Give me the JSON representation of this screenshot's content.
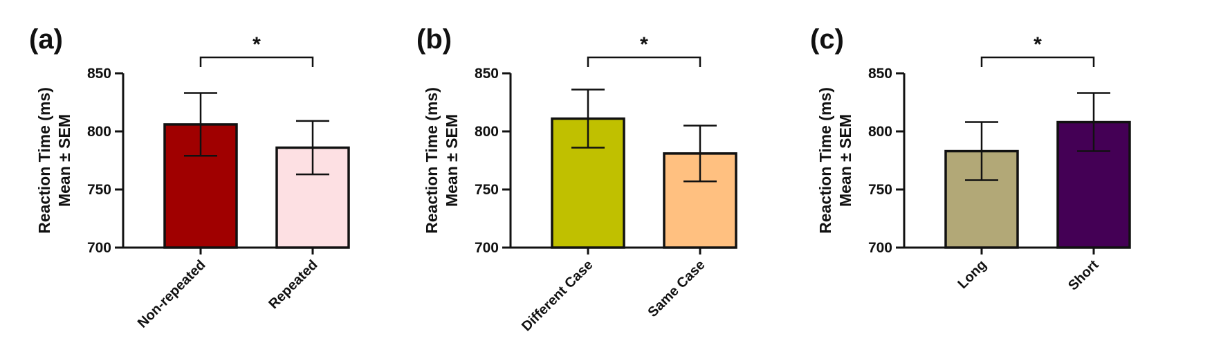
{
  "chart_data": [
    {
      "type": "bar",
      "panel_label": "(a)",
      "categories": [
        "Non-repeated",
        "Repeated"
      ],
      "values": [
        806,
        786
      ],
      "errors": [
        27,
        23
      ],
      "colors": [
        "#a00000",
        "#fde0e3"
      ],
      "ylabel": [
        "Reaction Time (ms)",
        "Mean ± SEM"
      ],
      "ylim": [
        700,
        850
      ],
      "yticks": [
        700,
        750,
        800,
        850
      ],
      "significance": "*",
      "grid": false
    },
    {
      "type": "bar",
      "panel_label": "(b)",
      "categories": [
        "Different Case",
        "Same Case"
      ],
      "values": [
        811,
        781
      ],
      "errors": [
        25,
        24
      ],
      "colors": [
        "#c0c000",
        "#ffc080"
      ],
      "ylabel": [
        "Reaction Time (ms)",
        "Mean ± SEM"
      ],
      "ylim": [
        700,
        850
      ],
      "yticks": [
        700,
        750,
        800,
        850
      ],
      "significance": "*",
      "grid": false
    },
    {
      "type": "bar",
      "panel_label": "(c)",
      "categories": [
        "Long",
        "Short"
      ],
      "values": [
        783,
        808
      ],
      "errors": [
        25,
        25
      ],
      "colors": [
        "#b2a877",
        "#440055"
      ],
      "ylabel": [
        "Reaction Time (ms)",
        "Mean ± SEM"
      ],
      "ylim": [
        700,
        850
      ],
      "yticks": [
        700,
        750,
        800,
        850
      ],
      "significance": "*",
      "grid": false
    }
  ]
}
